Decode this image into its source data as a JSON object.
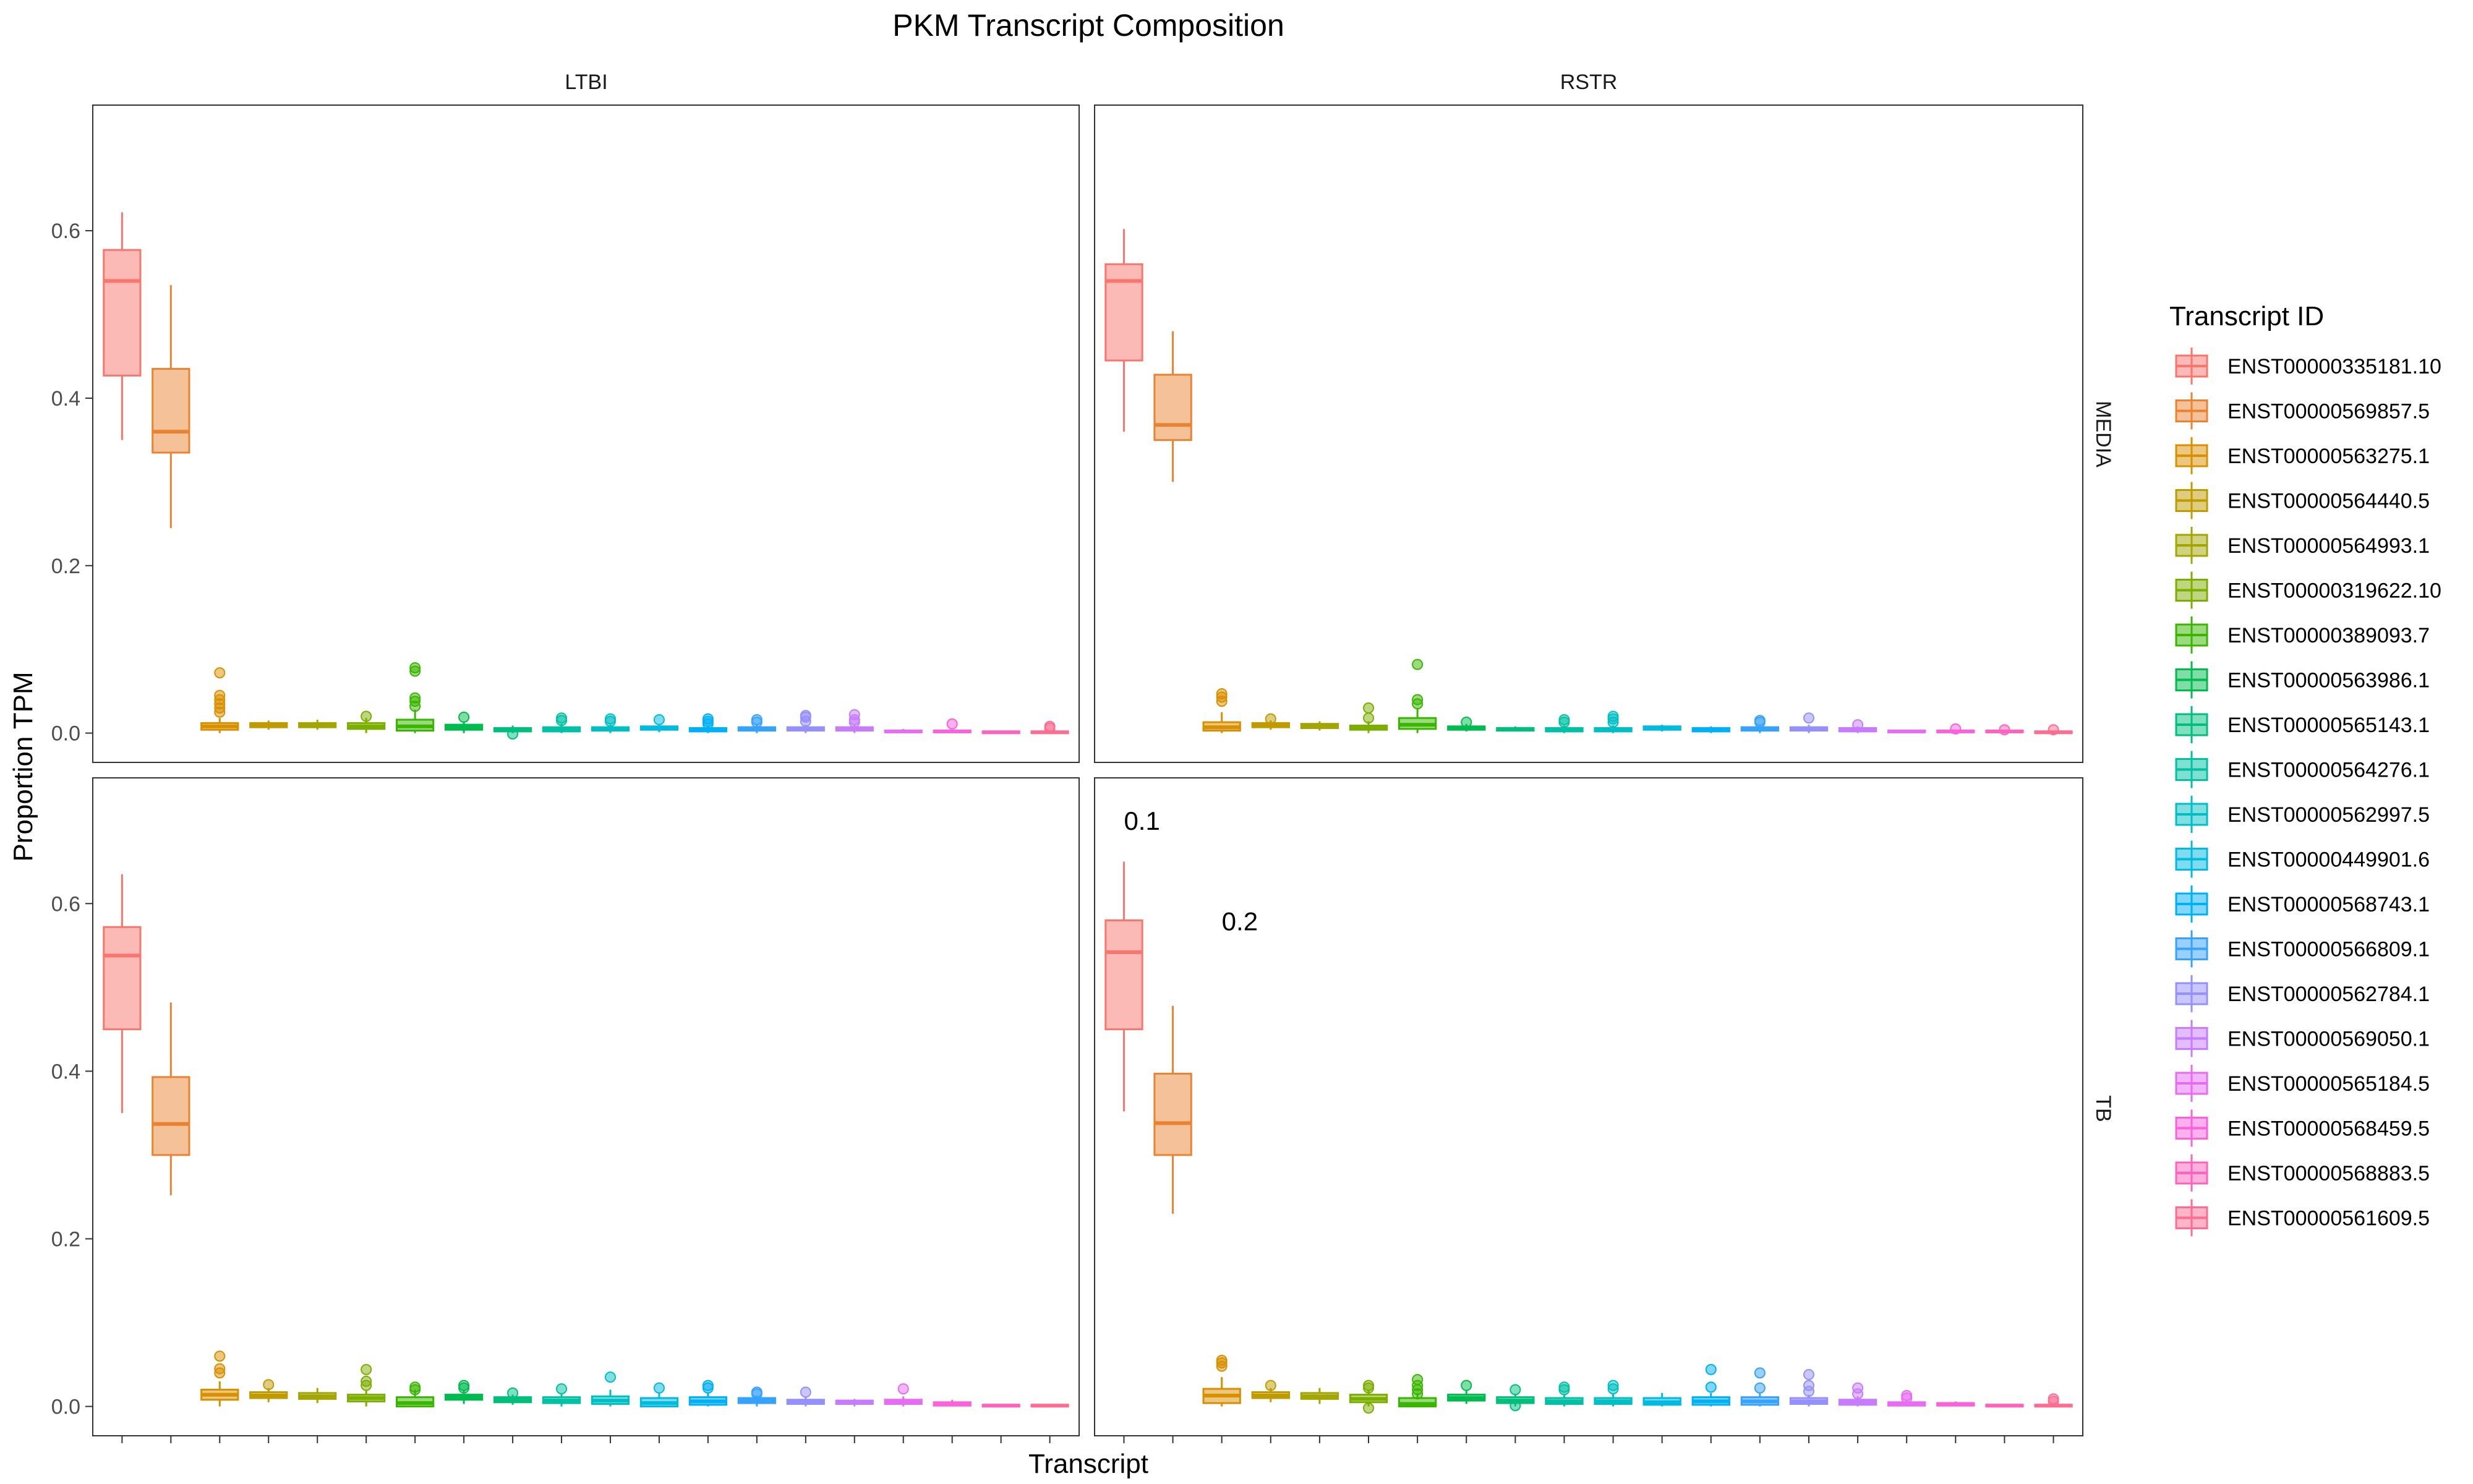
{
  "chart_data": {
    "type": "boxplot",
    "title": "PKM Transcript Composition",
    "xlabel": "Transcript",
    "ylabel": "Proportion TPM",
    "ylim": [
      -0.035,
      0.75
    ],
    "yticks": [
      0.0,
      0.2,
      0.4,
      0.6
    ],
    "ytick_labels": [
      "0.0",
      "0.2",
      "0.4",
      "0.6"
    ],
    "grid": false,
    "legend": {
      "title": "Transcript ID",
      "position": "right",
      "entries": [
        {
          "label": "ENST00000335181.10",
          "color": "#F8766D"
        },
        {
          "label": "ENST00000569857.5",
          "color": "#EA8331"
        },
        {
          "label": "ENST00000563275.1",
          "color": "#D89000"
        },
        {
          "label": "ENST00000564440.5",
          "color": "#C09B00"
        },
        {
          "label": "ENST00000564993.1",
          "color": "#A3A500"
        },
        {
          "label": "ENST00000319622.10",
          "color": "#7CAE00"
        },
        {
          "label": "ENST00000389093.7",
          "color": "#39B600"
        },
        {
          "label": "ENST00000563986.1",
          "color": "#00BB4E"
        },
        {
          "label": "ENST00000565143.1",
          "color": "#00BF7D"
        },
        {
          "label": "ENST00000564276.1",
          "color": "#00C1A3"
        },
        {
          "label": "ENST00000562997.5",
          "color": "#00BFC4"
        },
        {
          "label": "ENST00000449901.6",
          "color": "#00BAE0"
        },
        {
          "label": "ENST00000568743.1",
          "color": "#00B0F6"
        },
        {
          "label": "ENST00000566809.1",
          "color": "#35A2FF"
        },
        {
          "label": "ENST00000562784.1",
          "color": "#9590FF"
        },
        {
          "label": "ENST00000569050.1",
          "color": "#C77CFF"
        },
        {
          "label": "ENST00000565184.5",
          "color": "#E76BF3"
        },
        {
          "label": "ENST00000568459.5",
          "color": "#FA62DB"
        },
        {
          "label": "ENST00000568883.5",
          "color": "#FF62BC"
        },
        {
          "label": "ENST00000561609.5",
          "color": "#FF6C91"
        }
      ]
    },
    "facet_cols": [
      "LTBI",
      "RSTR"
    ],
    "facet_rows": [
      "MEDIA",
      "TB"
    ],
    "panels": [
      {
        "col": "LTBI",
        "row": "MEDIA",
        "annotations": [],
        "boxes": [
          {
            "q1": 0.427,
            "median": 0.54,
            "q3": 0.577,
            "lo": 0.35,
            "hi": 0.622,
            "out": []
          },
          {
            "q1": 0.335,
            "median": 0.36,
            "q3": 0.435,
            "lo": 0.245,
            "hi": 0.535,
            "out": []
          },
          {
            "q1": 0.004,
            "median": 0.008,
            "q3": 0.012,
            "lo": 0.0,
            "hi": 0.018,
            "out": [
              0.025,
              0.03,
              0.035,
              0.04,
              0.045,
              0.072
            ]
          },
          {
            "q1": 0.007,
            "median": 0.009,
            "q3": 0.012,
            "lo": 0.004,
            "hi": 0.015,
            "out": []
          },
          {
            "q1": 0.007,
            "median": 0.009,
            "q3": 0.012,
            "lo": 0.004,
            "hi": 0.016,
            "out": []
          },
          {
            "q1": 0.005,
            "median": 0.008,
            "q3": 0.012,
            "lo": 0.0,
            "hi": 0.018,
            "out": [
              0.02
            ]
          },
          {
            "q1": 0.003,
            "median": 0.008,
            "q3": 0.016,
            "lo": 0.0,
            "hi": 0.028,
            "out": [
              0.032,
              0.038,
              0.042,
              0.074,
              0.078
            ]
          },
          {
            "q1": 0.004,
            "median": 0.007,
            "q3": 0.01,
            "lo": 0.0,
            "hi": 0.014,
            "out": [
              0.019
            ]
          },
          {
            "q1": 0.002,
            "median": 0.004,
            "q3": 0.006,
            "lo": 0.0,
            "hi": 0.009,
            "out": [
              -0.001
            ]
          },
          {
            "q1": 0.002,
            "median": 0.004,
            "q3": 0.007,
            "lo": 0.0,
            "hi": 0.011,
            "out": [
              0.015,
              0.018
            ]
          },
          {
            "q1": 0.003,
            "median": 0.005,
            "q3": 0.007,
            "lo": 0.0,
            "hi": 0.01,
            "out": [
              0.014,
              0.017
            ]
          },
          {
            "q1": 0.004,
            "median": 0.006,
            "q3": 0.008,
            "lo": 0.001,
            "hi": 0.011,
            "out": [
              0.016
            ]
          },
          {
            "q1": 0.002,
            "median": 0.004,
            "q3": 0.006,
            "lo": 0.0,
            "hi": 0.009,
            "out": [
              0.011,
              0.014,
              0.017
            ]
          },
          {
            "q1": 0.003,
            "median": 0.005,
            "q3": 0.007,
            "lo": 0.0,
            "hi": 0.01,
            "out": [
              0.013,
              0.016
            ]
          },
          {
            "q1": 0.003,
            "median": 0.005,
            "q3": 0.007,
            "lo": 0.0,
            "hi": 0.01,
            "out": [
              0.014,
              0.019,
              0.021
            ]
          },
          {
            "q1": 0.003,
            "median": 0.005,
            "q3": 0.007,
            "lo": 0.0,
            "hi": 0.01,
            "out": [
              0.013,
              0.016,
              0.022
            ]
          },
          {
            "q1": 0.001,
            "median": 0.002,
            "q3": 0.003,
            "lo": 0.0,
            "hi": 0.005,
            "out": []
          },
          {
            "q1": 0.001,
            "median": 0.002,
            "q3": 0.003,
            "lo": 0.0,
            "hi": 0.005,
            "out": [
              0.011
            ]
          },
          {
            "q1": 0.0,
            "median": 0.001,
            "q3": 0.002,
            "lo": 0.0,
            "hi": 0.003,
            "out": []
          },
          {
            "q1": 0.0,
            "median": 0.001,
            "q3": 0.002,
            "lo": 0.0,
            "hi": 0.003,
            "out": [
              0.006,
              0.008
            ]
          }
        ]
      },
      {
        "col": "RSTR",
        "row": "MEDIA",
        "annotations": [],
        "boxes": [
          {
            "q1": 0.445,
            "median": 0.54,
            "q3": 0.56,
            "lo": 0.36,
            "hi": 0.602,
            "out": []
          },
          {
            "q1": 0.35,
            "median": 0.368,
            "q3": 0.428,
            "lo": 0.3,
            "hi": 0.48,
            "out": []
          },
          {
            "q1": 0.003,
            "median": 0.007,
            "q3": 0.013,
            "lo": 0.0,
            "hi": 0.025,
            "out": [
              0.038,
              0.043,
              0.047
            ]
          },
          {
            "q1": 0.007,
            "median": 0.009,
            "q3": 0.012,
            "lo": 0.004,
            "hi": 0.015,
            "out": [
              0.017
            ]
          },
          {
            "q1": 0.006,
            "median": 0.008,
            "q3": 0.011,
            "lo": 0.003,
            "hi": 0.014,
            "out": []
          },
          {
            "q1": 0.004,
            "median": 0.006,
            "q3": 0.009,
            "lo": 0.0,
            "hi": 0.014,
            "out": [
              0.018,
              0.03
            ]
          },
          {
            "q1": 0.005,
            "median": 0.01,
            "q3": 0.018,
            "lo": 0.0,
            "hi": 0.03,
            "out": [
              0.035,
              0.04,
              0.082
            ]
          },
          {
            "q1": 0.004,
            "median": 0.006,
            "q3": 0.008,
            "lo": 0.002,
            "hi": 0.011,
            "out": [
              0.013
            ]
          },
          {
            "q1": 0.003,
            "median": 0.005,
            "q3": 0.006,
            "lo": 0.002,
            "hi": 0.008,
            "out": []
          },
          {
            "q1": 0.002,
            "median": 0.004,
            "q3": 0.006,
            "lo": 0.0,
            "hi": 0.009,
            "out": [
              0.013,
              0.016
            ]
          },
          {
            "q1": 0.002,
            "median": 0.004,
            "q3": 0.006,
            "lo": 0.0,
            "hi": 0.009,
            "out": [
              0.013,
              0.017,
              0.02
            ]
          },
          {
            "q1": 0.004,
            "median": 0.006,
            "q3": 0.008,
            "lo": 0.002,
            "hi": 0.01,
            "out": []
          },
          {
            "q1": 0.002,
            "median": 0.004,
            "q3": 0.006,
            "lo": 0.0,
            "hi": 0.008,
            "out": []
          },
          {
            "q1": 0.003,
            "median": 0.005,
            "q3": 0.007,
            "lo": 0.0,
            "hi": 0.01,
            "out": [
              0.013,
              0.015
            ]
          },
          {
            "q1": 0.003,
            "median": 0.005,
            "q3": 0.007,
            "lo": 0.0,
            "hi": 0.01,
            "out": [
              0.018
            ]
          },
          {
            "q1": 0.002,
            "median": 0.004,
            "q3": 0.006,
            "lo": 0.0,
            "hi": 0.008,
            "out": [
              0.01
            ]
          },
          {
            "q1": 0.001,
            "median": 0.002,
            "q3": 0.003,
            "lo": 0.0,
            "hi": 0.004,
            "out": []
          },
          {
            "q1": 0.001,
            "median": 0.002,
            "q3": 0.003,
            "lo": 0.0,
            "hi": 0.004,
            "out": [
              0.005
            ]
          },
          {
            "q1": 0.001,
            "median": 0.002,
            "q3": 0.003,
            "lo": 0.0,
            "hi": 0.004,
            "out": [
              0.004
            ]
          },
          {
            "q1": 0.0,
            "median": 0.001,
            "q3": 0.002,
            "lo": 0.0,
            "hi": 0.003,
            "out": [
              0.004
            ]
          }
        ]
      },
      {
        "col": "LTBI",
        "row": "TB",
        "annotations": [],
        "boxes": [
          {
            "q1": 0.45,
            "median": 0.538,
            "q3": 0.572,
            "lo": 0.35,
            "hi": 0.635,
            "out": []
          },
          {
            "q1": 0.3,
            "median": 0.337,
            "q3": 0.393,
            "lo": 0.252,
            "hi": 0.482,
            "out": []
          },
          {
            "q1": 0.008,
            "median": 0.014,
            "q3": 0.02,
            "lo": 0.0,
            "hi": 0.03,
            "out": [
              0.04,
              0.045,
              0.06
            ]
          },
          {
            "q1": 0.01,
            "median": 0.013,
            "q3": 0.017,
            "lo": 0.005,
            "hi": 0.022,
            "out": [
              0.026
            ]
          },
          {
            "q1": 0.009,
            "median": 0.012,
            "q3": 0.016,
            "lo": 0.004,
            "hi": 0.022,
            "out": []
          },
          {
            "q1": 0.006,
            "median": 0.01,
            "q3": 0.014,
            "lo": 0.0,
            "hi": 0.02,
            "out": [
              0.025,
              0.03,
              0.044
            ]
          },
          {
            "q1": 0.0,
            "median": 0.004,
            "q3": 0.011,
            "lo": 0.0,
            "hi": 0.02,
            "out": [
              0.02,
              0.023
            ]
          },
          {
            "q1": 0.008,
            "median": 0.011,
            "q3": 0.014,
            "lo": 0.003,
            "hi": 0.019,
            "out": [
              0.022,
              0.025
            ]
          },
          {
            "q1": 0.005,
            "median": 0.008,
            "q3": 0.011,
            "lo": 0.002,
            "hi": 0.014,
            "out": [
              0.016
            ]
          },
          {
            "q1": 0.004,
            "median": 0.007,
            "q3": 0.011,
            "lo": 0.0,
            "hi": 0.016,
            "out": [
              0.021
            ]
          },
          {
            "q1": 0.003,
            "median": 0.007,
            "q3": 0.012,
            "lo": 0.0,
            "hi": 0.02,
            "out": [
              0.035
            ]
          },
          {
            "q1": 0.0,
            "median": 0.004,
            "q3": 0.01,
            "lo": 0.0,
            "hi": 0.016,
            "out": [
              0.022
            ]
          },
          {
            "q1": 0.002,
            "median": 0.006,
            "q3": 0.011,
            "lo": 0.0,
            "hi": 0.017,
            "out": [
              0.022,
              0.025
            ]
          },
          {
            "q1": 0.004,
            "median": 0.007,
            "q3": 0.01,
            "lo": 0.0,
            "hi": 0.013,
            "out": [
              0.015,
              0.017
            ]
          },
          {
            "q1": 0.003,
            "median": 0.005,
            "q3": 0.008,
            "lo": 0.0,
            "hi": 0.012,
            "out": [
              0.017
            ]
          },
          {
            "q1": 0.003,
            "median": 0.005,
            "q3": 0.007,
            "lo": 0.0,
            "hi": 0.009,
            "out": []
          },
          {
            "q1": 0.003,
            "median": 0.005,
            "q3": 0.008,
            "lo": 0.0,
            "hi": 0.012,
            "out": [
              0.021
            ]
          },
          {
            "q1": 0.001,
            "median": 0.003,
            "q3": 0.005,
            "lo": 0.0,
            "hi": 0.008,
            "out": []
          },
          {
            "q1": 0.0,
            "median": 0.001,
            "q3": 0.002,
            "lo": 0.0,
            "hi": 0.003,
            "out": []
          },
          {
            "q1": 0.0,
            "median": 0.001,
            "q3": 0.002,
            "lo": 0.0,
            "hi": 0.003,
            "out": []
          }
        ]
      },
      {
        "col": "RSTR",
        "row": "TB",
        "annotations": [
          {
            "text": "0.1",
            "x": 0.6,
            "y": 0.7
          },
          {
            "text": "0.2",
            "x": 2.6,
            "y": 0.58
          }
        ],
        "boxes": [
          {
            "q1": 0.45,
            "median": 0.542,
            "q3": 0.58,
            "lo": 0.352,
            "hi": 0.65,
            "out": []
          },
          {
            "q1": 0.3,
            "median": 0.338,
            "q3": 0.397,
            "lo": 0.23,
            "hi": 0.478,
            "out": []
          },
          {
            "q1": 0.004,
            "median": 0.013,
            "q3": 0.021,
            "lo": 0.0,
            "hi": 0.035,
            "out": [
              0.048,
              0.052,
              0.055
            ]
          },
          {
            "q1": 0.01,
            "median": 0.013,
            "q3": 0.017,
            "lo": 0.005,
            "hi": 0.022,
            "out": [
              0.025
            ]
          },
          {
            "q1": 0.009,
            "median": 0.012,
            "q3": 0.016,
            "lo": 0.003,
            "hi": 0.022,
            "out": []
          },
          {
            "q1": 0.005,
            "median": 0.009,
            "q3": 0.014,
            "lo": 0.0,
            "hi": 0.02,
            "out": [
              0.022,
              0.025,
              -0.002
            ]
          },
          {
            "q1": 0.0,
            "median": 0.003,
            "q3": 0.01,
            "lo": 0.0,
            "hi": 0.016,
            "out": [
              0.015,
              0.02,
              0.025,
              0.032
            ]
          },
          {
            "q1": 0.007,
            "median": 0.01,
            "q3": 0.014,
            "lo": 0.003,
            "hi": 0.02,
            "out": [
              0.025
            ]
          },
          {
            "q1": 0.004,
            "median": 0.007,
            "q3": 0.011,
            "lo": 0.0,
            "hi": 0.015,
            "out": [
              0.02,
              0.001
            ]
          },
          {
            "q1": 0.003,
            "median": 0.006,
            "q3": 0.01,
            "lo": 0.0,
            "hi": 0.015,
            "out": [
              0.02,
              0.023
            ]
          },
          {
            "q1": 0.003,
            "median": 0.006,
            "q3": 0.01,
            "lo": 0.0,
            "hi": 0.015,
            "out": [
              0.021,
              0.025
            ]
          },
          {
            "q1": 0.002,
            "median": 0.005,
            "q3": 0.01,
            "lo": 0.0,
            "hi": 0.016,
            "out": []
          },
          {
            "q1": 0.002,
            "median": 0.006,
            "q3": 0.011,
            "lo": 0.0,
            "hi": 0.016,
            "out": [
              0.023,
              0.044
            ]
          },
          {
            "q1": 0.002,
            "median": 0.006,
            "q3": 0.011,
            "lo": 0.0,
            "hi": 0.016,
            "out": [
              0.022,
              0.04
            ]
          },
          {
            "q1": 0.003,
            "median": 0.006,
            "q3": 0.01,
            "lo": 0.0,
            "hi": 0.014,
            "out": [
              0.018,
              0.025,
              0.038
            ]
          },
          {
            "q1": 0.002,
            "median": 0.005,
            "q3": 0.008,
            "lo": 0.0,
            "hi": 0.012,
            "out": [
              0.015,
              0.022
            ]
          },
          {
            "q1": 0.001,
            "median": 0.003,
            "q3": 0.005,
            "lo": 0.0,
            "hi": 0.008,
            "out": [
              0.01,
              0.013
            ]
          },
          {
            "q1": 0.001,
            "median": 0.003,
            "q3": 0.004,
            "lo": 0.0,
            "hi": 0.006,
            "out": []
          },
          {
            "q1": 0.0,
            "median": 0.001,
            "q3": 0.002,
            "lo": 0.0,
            "hi": 0.003,
            "out": []
          },
          {
            "q1": 0.0,
            "median": 0.001,
            "q3": 0.002,
            "lo": 0.0,
            "hi": 0.004,
            "out": [
              0.006,
              0.009
            ]
          }
        ]
      }
    ]
  }
}
